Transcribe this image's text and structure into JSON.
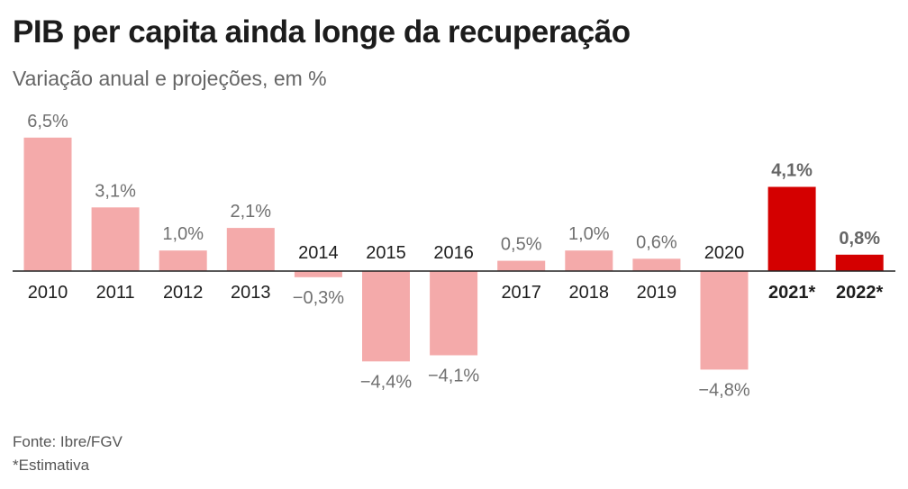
{
  "title": "PIB per capita ainda longe da recuperação",
  "subtitle": "Variação anual e projeções, em %",
  "source": "Fonte: Ibre/FGV",
  "note": "*Estimativa",
  "colors": {
    "historical": "#f4aaaa",
    "estimate": "#d40000",
    "axis": "#222222",
    "label_historical": "#707070",
    "label_estimate": "#666666"
  },
  "chart_data": {
    "type": "bar",
    "categories": [
      "2010",
      "2011",
      "2012",
      "2013",
      "2014",
      "2015",
      "2016",
      "2017",
      "2018",
      "2019",
      "2020",
      "2021*",
      "2022*"
    ],
    "values": [
      6.5,
      3.1,
      1.0,
      2.1,
      -0.3,
      -4.4,
      -4.1,
      0.5,
      1.0,
      0.6,
      -4.8,
      4.1,
      0.8
    ],
    "value_labels": [
      "6,5%",
      "3,1%",
      "1,0%",
      "2,1%",
      "−0,3%",
      "−4,4%",
      "−4,1%",
      "0,5%",
      "1,0%",
      "0,6%",
      "−4,8%",
      "4,1%",
      "0,8%"
    ],
    "estimates": [
      "2021*",
      "2022*"
    ],
    "ylim": [
      -4.8,
      6.5
    ],
    "grid": false,
    "legend": "none"
  }
}
